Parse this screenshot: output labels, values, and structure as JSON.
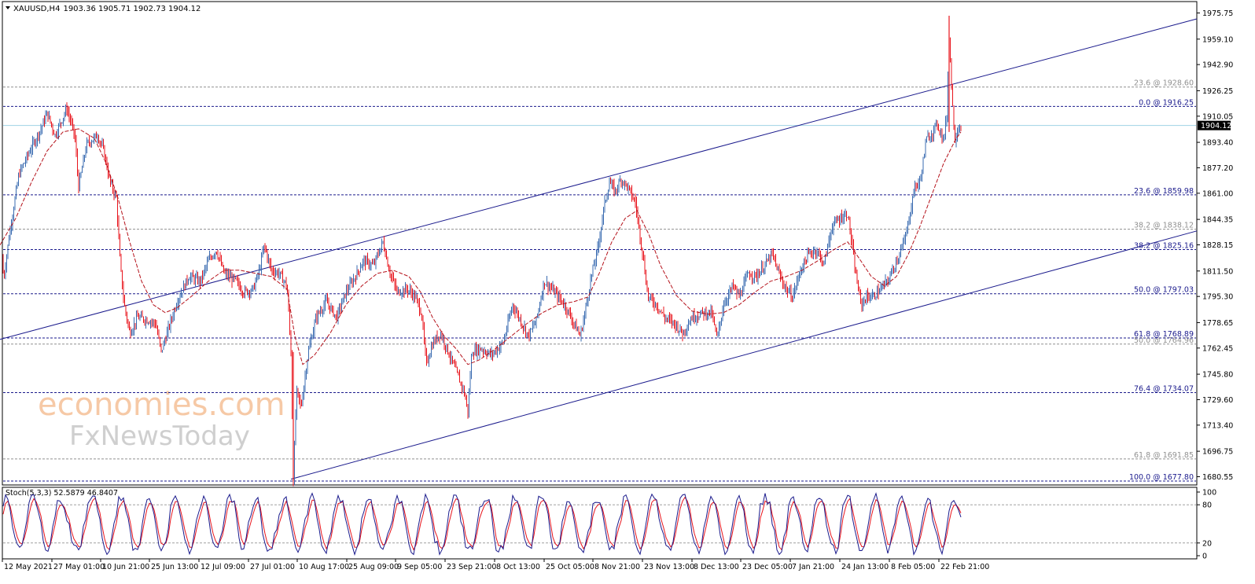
{
  "header": {
    "symbol": "XAUUSD,H4",
    "ohlc": "1903.36 1905.71 1902.73 1904.12"
  },
  "watermark": {
    "line1": "economies.com",
    "line2": "FxNewsToday"
  },
  "colors": {
    "bull": "#3a6bb0",
    "bear": "#e8141c",
    "ma": "#b5121b",
    "channel": "#1a1a8c",
    "fib_main": "#1a1a8c",
    "fib_secondary": "#909090",
    "stoch_main": "#1a1a8c",
    "stoch_signal": "#e8141c",
    "price_line": "#9fd3e6"
  },
  "chart_data": [
    {
      "type": "candlestick",
      "symbol": "XAUUSD",
      "timeframe": "H4",
      "ylim": [
        1677.8,
        1980
      ],
      "yticks": [
        1975.75,
        1959.1,
        1942.9,
        1926.25,
        1910.05,
        1893.4,
        1877.2,
        1861.0,
        1844.35,
        1828.15,
        1811.5,
        1795.3,
        1778.65,
        1762.45,
        1745.8,
        1729.6,
        1713.4,
        1696.75,
        1680.55
      ],
      "current_price": 1904.12,
      "x_labels": [
        "12 May 2021",
        "27 May 01:00",
        "10 Jun 21:00",
        "25 Jun 13:00",
        "12 Jul 09:00",
        "27 Jul 01:00",
        "10 Aug 17:00",
        "25 Aug 09:00",
        "9 Sep 05:00",
        "23 Sep 21:00",
        "8 Oct 13:00",
        "25 Oct 05:00",
        "8 Nov 21:00",
        "23 Nov 13:00",
        "8 Dec 13:00",
        "23 Dec 05:00",
        "7 Jan 21:00",
        "24 Jan 13:00",
        "8 Feb 05:00",
        "22 Feb 21:00"
      ],
      "path": [
        [
          0,
          1820
        ],
        [
          5,
          1808
        ],
        [
          12,
          1835
        ],
        [
          24,
          1873
        ],
        [
          38,
          1888
        ],
        [
          52,
          1902
        ],
        [
          60,
          1912
        ],
        [
          70,
          1898
        ],
        [
          85,
          1915
        ],
        [
          95,
          1898
        ],
        [
          100,
          1865
        ],
        [
          110,
          1892
        ],
        [
          124,
          1898
        ],
        [
          132,
          1888
        ],
        [
          140,
          1868
        ],
        [
          148,
          1858
        ],
        [
          153,
          1815
        ],
        [
          158,
          1790
        ],
        [
          165,
          1772
        ],
        [
          175,
          1782
        ],
        [
          190,
          1780
        ],
        [
          198,
          1778
        ],
        [
          205,
          1760
        ],
        [
          215,
          1776
        ],
        [
          225,
          1792
        ],
        [
          240,
          1808
        ],
        [
          255,
          1805
        ],
        [
          265,
          1818
        ],
        [
          275,
          1825
        ],
        [
          285,
          1810
        ],
        [
          300,
          1805
        ],
        [
          310,
          1798
        ],
        [
          322,
          1800
        ],
        [
          330,
          1812
        ],
        [
          336,
          1828
        ],
        [
          345,
          1812
        ],
        [
          355,
          1810
        ],
        [
          365,
          1802
        ],
        [
          370,
          1760
        ],
        [
          373,
          1678
        ],
        [
          377,
          1735
        ],
        [
          383,
          1725
        ],
        [
          392,
          1760
        ],
        [
          402,
          1782
        ],
        [
          415,
          1792
        ],
        [
          428,
          1782
        ],
        [
          440,
          1798
        ],
        [
          452,
          1808
        ],
        [
          462,
          1818
        ],
        [
          475,
          1815
        ],
        [
          487,
          1830
        ],
        [
          495,
          1812
        ],
        [
          505,
          1798
        ],
        [
          518,
          1800
        ],
        [
          528,
          1795
        ],
        [
          536,
          1785
        ],
        [
          542,
          1752
        ],
        [
          550,
          1765
        ],
        [
          560,
          1772
        ],
        [
          570,
          1760
        ],
        [
          582,
          1745
        ],
        [
          590,
          1735
        ],
        [
          595,
          1722
        ],
        [
          600,
          1760
        ],
        [
          612,
          1762
        ],
        [
          625,
          1758
        ],
        [
          640,
          1766
        ],
        [
          652,
          1790
        ],
        [
          660,
          1782
        ],
        [
          672,
          1770
        ],
        [
          682,
          1780
        ],
        [
          692,
          1805
        ],
        [
          705,
          1798
        ],
        [
          718,
          1790
        ],
        [
          728,
          1780
        ],
        [
          738,
          1770
        ],
        [
          745,
          1788
        ],
        [
          752,
          1808
        ],
        [
          760,
          1825
        ],
        [
          768,
          1852
        ],
        [
          775,
          1868
        ],
        [
          782,
          1862
        ],
        [
          790,
          1870
        ],
        [
          798,
          1865
        ],
        [
          808,
          1855
        ],
        [
          818,
          1820
        ],
        [
          824,
          1795
        ],
        [
          835,
          1790
        ],
        [
          845,
          1782
        ],
        [
          858,
          1778
        ],
        [
          868,
          1772
        ],
        [
          880,
          1782
        ],
        [
          895,
          1785
        ],
        [
          905,
          1785
        ],
        [
          912,
          1768
        ],
        [
          920,
          1790
        ],
        [
          932,
          1802
        ],
        [
          940,
          1795
        ],
        [
          952,
          1810
        ],
        [
          962,
          1808
        ],
        [
          972,
          1815
        ],
        [
          982,
          1822
        ],
        [
          992,
          1808
        ],
        [
          1000,
          1800
        ],
        [
          1008,
          1795
        ],
        [
          1018,
          1812
        ],
        [
          1028,
          1822
        ],
        [
          1038,
          1825
        ],
        [
          1048,
          1816
        ],
        [
          1058,
          1840
        ],
        [
          1068,
          1845
        ],
        [
          1078,
          1848
        ],
        [
          1083,
          1830
        ],
        [
          1088,
          1810
        ],
        [
          1095,
          1790
        ],
        [
          1102,
          1795
        ],
        [
          1110,
          1795
        ],
        [
          1120,
          1800
        ],
        [
          1130,
          1806
        ],
        [
          1140,
          1818
        ],
        [
          1150,
          1830
        ],
        [
          1158,
          1850
        ],
        [
          1163,
          1865
        ],
        [
          1170,
          1868
        ],
        [
          1178,
          1895
        ],
        [
          1186,
          1900
        ],
        [
          1192,
          1905
        ],
        [
          1200,
          1895
        ],
        [
          1204,
          1910
        ],
        [
          1207,
          1962
        ],
        [
          1211,
          1920
        ],
        [
          1214,
          1895
        ],
        [
          1218,
          1902
        ],
        [
          1222,
          1904
        ]
      ],
      "ma_path": [
        [
          0,
          1828
        ],
        [
          20,
          1845
        ],
        [
          40,
          1868
        ],
        [
          60,
          1888
        ],
        [
          80,
          1900
        ],
        [
          100,
          1902
        ],
        [
          120,
          1896
        ],
        [
          135,
          1880
        ],
        [
          150,
          1858
        ],
        [
          165,
          1830
        ],
        [
          180,
          1805
        ],
        [
          195,
          1790
        ],
        [
          210,
          1785
        ],
        [
          225,
          1788
        ],
        [
          245,
          1796
        ],
        [
          265,
          1805
        ],
        [
          285,
          1812
        ],
        [
          305,
          1812
        ],
        [
          325,
          1810
        ],
        [
          345,
          1808
        ],
        [
          365,
          1800
        ],
        [
          375,
          1770
        ],
        [
          385,
          1752
        ],
        [
          400,
          1758
        ],
        [
          420,
          1772
        ],
        [
          440,
          1790
        ],
        [
          460,
          1802
        ],
        [
          480,
          1810
        ],
        [
          500,
          1812
        ],
        [
          520,
          1808
        ],
        [
          535,
          1798
        ],
        [
          550,
          1782
        ],
        [
          565,
          1770
        ],
        [
          580,
          1762
        ],
        [
          595,
          1752
        ],
        [
          610,
          1755
        ],
        [
          630,
          1762
        ],
        [
          650,
          1770
        ],
        [
          670,
          1778
        ],
        [
          690,
          1785
        ],
        [
          710,
          1790
        ],
        [
          730,
          1792
        ],
        [
          748,
          1795
        ],
        [
          762,
          1810
        ],
        [
          778,
          1830
        ],
        [
          795,
          1845
        ],
        [
          810,
          1850
        ],
        [
          825,
          1835
        ],
        [
          840,
          1815
        ],
        [
          860,
          1796
        ],
        [
          880,
          1786
        ],
        [
          900,
          1784
        ],
        [
          920,
          1785
        ],
        [
          940,
          1790
        ],
        [
          960,
          1798
        ],
        [
          980,
          1805
        ],
        [
          1000,
          1808
        ],
        [
          1020,
          1812
        ],
        [
          1040,
          1818
        ],
        [
          1060,
          1825
        ],
        [
          1078,
          1830
        ],
        [
          1092,
          1820
        ],
        [
          1108,
          1808
        ],
        [
          1125,
          1802
        ],
        [
          1140,
          1808
        ],
        [
          1155,
          1822
        ],
        [
          1170,
          1840
        ],
        [
          1185,
          1860
        ],
        [
          1200,
          1880
        ],
        [
          1215,
          1895
        ],
        [
          1222,
          1900
        ]
      ],
      "channel_upper": {
        "from": [
          0,
          1768
        ],
        "to": [
          1522,
          1972
        ]
      },
      "channel_lower": {
        "from": [
          370,
          1679
        ],
        "to": [
          1522,
          1837
        ]
      },
      "fibonacci_primary": [
        {
          "label": "0.0 @ 1916.25",
          "value": 1916.25
        },
        {
          "label": "23.6 @ 1859.98",
          "value": 1859.98
        },
        {
          "label": "38.2 @ 1825.16",
          "value": 1825.16
        },
        {
          "label": "50.0 @ 1797.03",
          "value": 1797.03
        },
        {
          "label": "61.8 @ 1768.89",
          "value": 1768.89
        },
        {
          "label": "76.4 @ 1734.07",
          "value": 1734.07
        },
        {
          "label": "100.0 @ 1677.80",
          "value": 1677.8
        }
      ],
      "fibonacci_secondary": [
        {
          "label": "23.6 @ 1928.60",
          "value": 1928.6
        },
        {
          "label": "38.2 @ 1838.12",
          "value": 1838.12
        },
        {
          "label": "50.0 @ 1764.96",
          "value": 1764.96
        },
        {
          "label": "61.8 @ 1691.85",
          "value": 1691.85
        }
      ]
    },
    {
      "type": "line",
      "indicator": "Stochastic",
      "title": "Stoch(5,3,3) 52.5879 46.8407",
      "ylim": [
        0,
        100
      ],
      "yticks": [
        100,
        80,
        20,
        0
      ],
      "levels": [
        80,
        20
      ],
      "series": [
        {
          "name": "main",
          "last": 52.5879
        },
        {
          "name": "signal",
          "last": 46.8407
        }
      ]
    }
  ]
}
